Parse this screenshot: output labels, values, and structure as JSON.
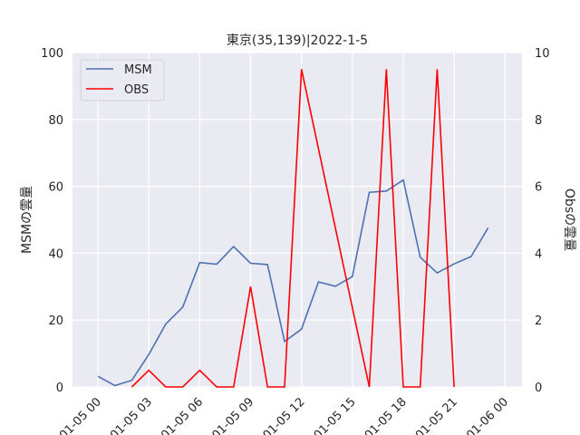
{
  "chart_data": {
    "type": "line",
    "title": "東京(35,139)|2022-1-5",
    "xlabel": "",
    "ylabel_left": "MSMの雲量",
    "ylabel_right": "Obsの雲量",
    "ylim_left": [
      0,
      100
    ],
    "ylim_right": [
      0,
      10
    ],
    "yticks_left": [
      "0",
      "20",
      "40",
      "60",
      "80",
      "100"
    ],
    "yticks_right": [
      "0",
      "2",
      "4",
      "6",
      "8",
      "10"
    ],
    "xlim_hours": [
      -1.5,
      25
    ],
    "xticks": [
      {
        "hour": 0,
        "label": "01-05 00"
      },
      {
        "hour": 3,
        "label": "01-05 03"
      },
      {
        "hour": 6,
        "label": "01-05 06"
      },
      {
        "hour": 9,
        "label": "01-05 09"
      },
      {
        "hour": 12,
        "label": "01-05 12"
      },
      {
        "hour": 15,
        "label": "01-05 15"
      },
      {
        "hour": 18,
        "label": "01-05 18"
      },
      {
        "hour": 21,
        "label": "01-05 21"
      },
      {
        "hour": 24,
        "label": "01-06 00"
      }
    ],
    "grid": true,
    "legend_position": "top-left",
    "background_color": "#eaeaf2",
    "series": [
      {
        "name": "MSM",
        "axis": "left",
        "color": "#4c72b0",
        "x_hours": [
          0,
          1,
          2,
          3,
          4,
          5,
          6,
          7,
          8,
          9,
          10,
          11,
          12,
          13,
          14,
          15,
          16,
          17,
          18,
          19,
          20,
          21,
          22,
          23
        ],
        "values": [
          3.2,
          0.4,
          2.0,
          9.7,
          18.8,
          23.9,
          37.2,
          36.7,
          42.0,
          37.0,
          36.6,
          13.6,
          17.3,
          31.4,
          30.1,
          33.0,
          58.2,
          58.6,
          61.9,
          38.8,
          34.1,
          36.8,
          39.0,
          47.6
        ]
      },
      {
        "name": "OBS",
        "axis": "right",
        "color": "#ff0000",
        "x_hours": [
          2,
          3,
          4,
          5,
          6,
          7,
          8,
          9,
          10,
          11,
          12,
          16,
          17,
          18,
          19,
          20,
          21
        ],
        "values": [
          0,
          0.5,
          0,
          0,
          0.5,
          0,
          0,
          3,
          0,
          0,
          9.5,
          0,
          9.5,
          0,
          0,
          9.5,
          0
        ]
      }
    ]
  }
}
